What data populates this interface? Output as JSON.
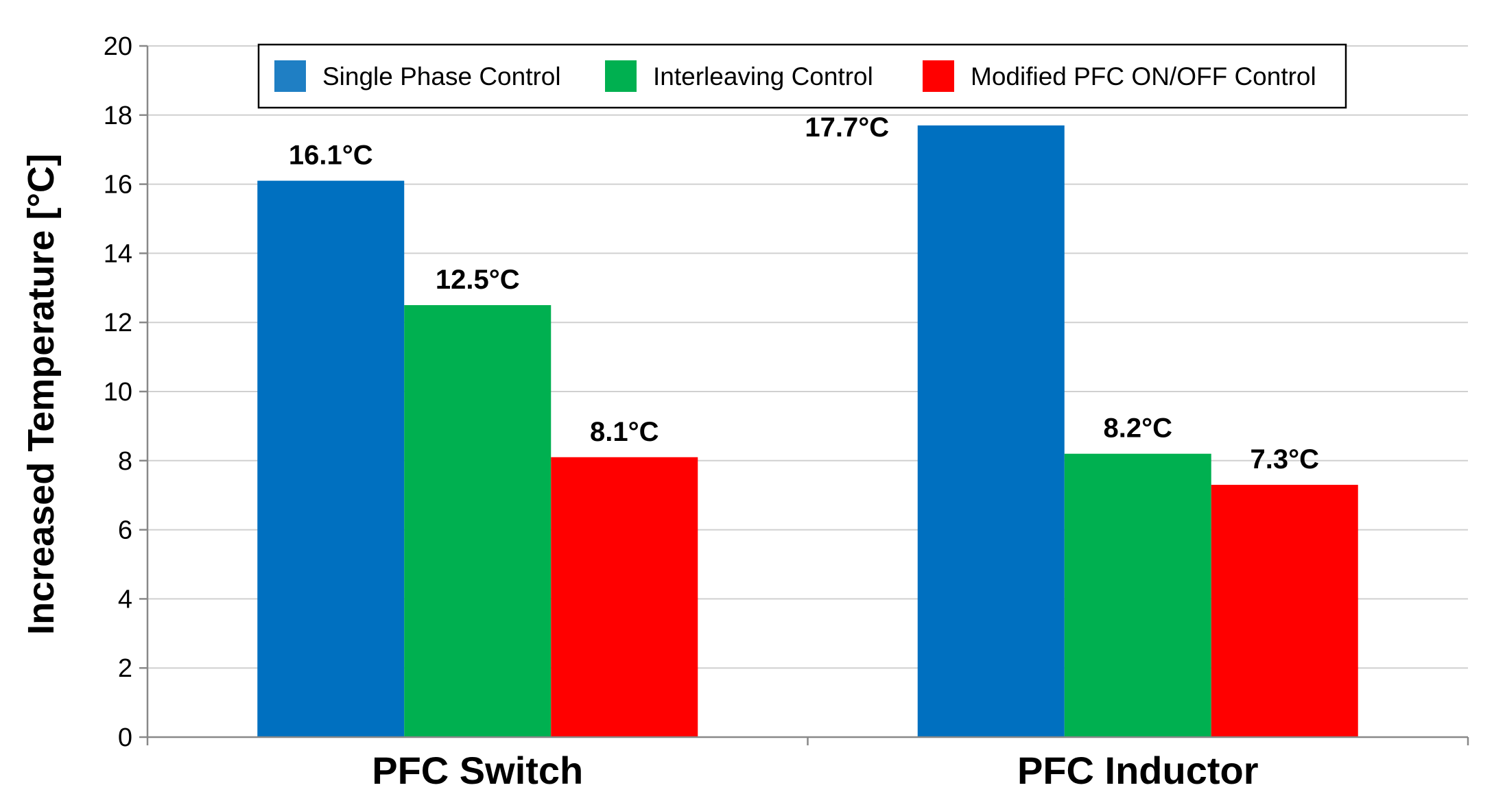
{
  "chart_data": {
    "type": "bar",
    "title": "",
    "xlabel": "",
    "ylabel": "Increased Temperature [°C]",
    "ylim": [
      0,
      20
    ],
    "yticks": [
      0,
      2,
      4,
      6,
      8,
      10,
      12,
      14,
      16,
      18,
      20
    ],
    "grid": true,
    "legend_position": "top",
    "categories": [
      "PFC Switch",
      "PFC Inductor"
    ],
    "series": [
      {
        "name": "Single Phase Control",
        "color": "#0070C0",
        "legend_color": "#1F7FC4",
        "values": [
          16.1,
          17.7
        ],
        "labels": [
          "16.1°C",
          "17.7°C"
        ]
      },
      {
        "name": "Interleaving Control",
        "color": "#00B050",
        "legend_color": "#00B050",
        "values": [
          12.5,
          8.2
        ],
        "labels": [
          "12.5°C",
          "8.2°C"
        ]
      },
      {
        "name": "Modified PFC ON/OFF Control",
        "color": "#FF0000",
        "legend_color": "#FF0000",
        "values": [
          8.1,
          7.3
        ],
        "labels": [
          "8.1°C",
          "7.3°C"
        ]
      }
    ]
  }
}
